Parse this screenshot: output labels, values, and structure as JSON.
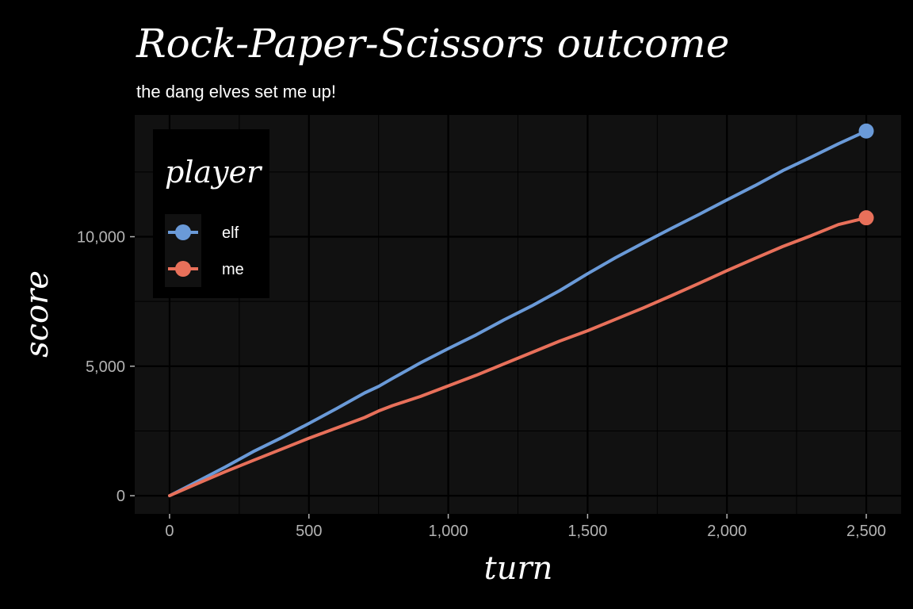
{
  "chart_data": {
    "type": "line",
    "title": "Rock-Paper-Scissors outcome",
    "subtitle": "the dang elves set me up!",
    "xlabel": "turn",
    "ylabel": "score",
    "xlim": [
      -125,
      2625
    ],
    "ylim": [
      -700,
      14700
    ],
    "xticks": [
      0,
      500,
      1000,
      1500,
      2000,
      2500
    ],
    "xtick_labels": [
      "0",
      "500",
      "1,000",
      "1,500",
      "2,000",
      "2,500"
    ],
    "yticks": [
      0,
      5000,
      10000
    ],
    "ytick_labels": [
      "0",
      "5,000",
      "10,000"
    ],
    "grid": true,
    "legend": {
      "title": "player",
      "position": "top-left"
    },
    "series": [
      {
        "name": "elf",
        "color": "#6a9ad8",
        "x": [
          0,
          100,
          200,
          300,
          400,
          500,
          600,
          700,
          750,
          800,
          900,
          1000,
          1100,
          1200,
          1300,
          1400,
          1500,
          1600,
          1700,
          1800,
          1900,
          2000,
          2100,
          2200,
          2300,
          2400,
          2500
        ],
        "y": [
          0,
          550,
          1110,
          1700,
          2230,
          2790,
          3370,
          3970,
          4220,
          4530,
          5130,
          5680,
          6210,
          6790,
          7330,
          7920,
          8570,
          9190,
          9760,
          10320,
          10860,
          11420,
          11970,
          12550,
          13060,
          13590,
          14080
        ]
      },
      {
        "name": "me",
        "color": "#e8705a",
        "x": [
          0,
          100,
          200,
          300,
          400,
          500,
          600,
          700,
          750,
          800,
          900,
          1000,
          1100,
          1200,
          1300,
          1400,
          1500,
          1600,
          1700,
          1800,
          1900,
          2000,
          2100,
          2200,
          2300,
          2400,
          2500
        ],
        "y": [
          0,
          470,
          930,
          1360,
          1790,
          2220,
          2620,
          3020,
          3270,
          3480,
          3830,
          4240,
          4650,
          5090,
          5530,
          5970,
          6370,
          6810,
          7250,
          7720,
          8200,
          8690,
          9160,
          9620,
          10030,
          10470,
          10730
        ]
      }
    ]
  }
}
